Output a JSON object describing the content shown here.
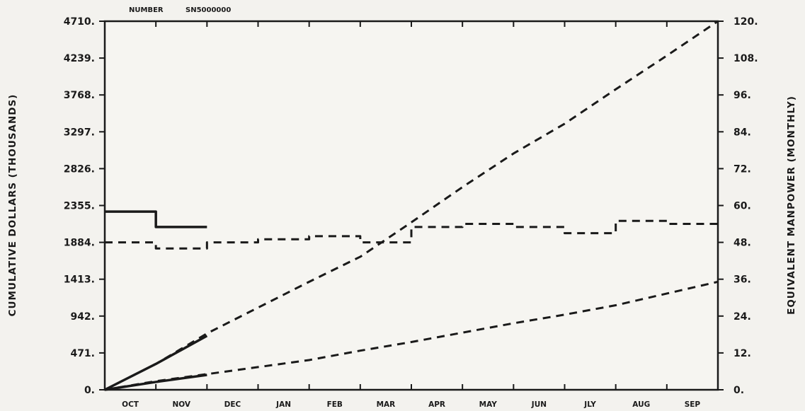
{
  "header": {
    "number_label": "NUMBER",
    "number_value": "SN5000000"
  },
  "chart_data": {
    "type": "line",
    "title": "",
    "xlabel": "",
    "ylabel_left": "CUMULATIVE DOLLARS (THOUSANDS)",
    "ylabel_right": "EQUIVALENT MANPOWER (MONTHLY)",
    "categories": [
      "OCT",
      "NOV",
      "DEC",
      "JAN",
      "FEB",
      "MAR",
      "APR",
      "MAY",
      "JUN",
      "JLY",
      "AUG",
      "SEP"
    ],
    "x_range": [
      0,
      12
    ],
    "left_axis": {
      "range": [
        0,
        4710
      ],
      "ticks": [
        0,
        471,
        942,
        1413,
        1884,
        2355,
        2826,
        3297,
        3768,
        4239,
        4710
      ],
      "tick_labels": [
        "0.",
        "471.",
        "942.",
        "1413.",
        "1884.",
        "2355.",
        "2826.",
        "3297.",
        "3768.",
        "4239.",
        "4710."
      ]
    },
    "right_axis": {
      "range": [
        0,
        120
      ],
      "ticks": [
        0,
        12,
        24,
        36,
        48,
        60,
        72,
        84,
        96,
        108,
        120
      ],
      "tick_labels": [
        "0.",
        "12.",
        "24.",
        "36.",
        "48.",
        "60.",
        "72.",
        "84.",
        "96.",
        "108.",
        "120."
      ]
    },
    "grid": false,
    "series": [
      {
        "axis": "left",
        "style": "dashed",
        "kind": "line",
        "x": [
          0,
          1,
          2,
          3,
          4,
          5,
          6,
          7,
          8,
          9,
          10,
          11,
          12
        ],
        "values": [
          0,
          330,
          720,
          1050,
          1380,
          1700,
          2140,
          2590,
          3020,
          3400,
          3840,
          4270,
          4710
        ]
      },
      {
        "axis": "left",
        "style": "solid",
        "kind": "line",
        "x": [
          0,
          1,
          2
        ],
        "values": [
          0,
          330,
          690
        ]
      },
      {
        "axis": "left",
        "style": "dashed",
        "kind": "line",
        "x": [
          0,
          1,
          2,
          3,
          4,
          5,
          6,
          7,
          8,
          9,
          10,
          11,
          12
        ],
        "values": [
          0,
          110,
          200,
          290,
          380,
          500,
          610,
          730,
          850,
          960,
          1080,
          1230,
          1380
        ]
      },
      {
        "axis": "left",
        "style": "solid",
        "kind": "line",
        "x": [
          0,
          1,
          2
        ],
        "values": [
          0,
          100,
          190
        ]
      },
      {
        "axis": "right",
        "style": "dashed",
        "kind": "step",
        "x": [
          0,
          1,
          2,
          3,
          4,
          5,
          6,
          7,
          8,
          9,
          10,
          11,
          12
        ],
        "values": [
          48,
          46,
          48,
          49,
          50,
          48,
          53,
          54,
          53,
          51,
          55,
          54,
          59
        ]
      },
      {
        "axis": "right",
        "style": "solid",
        "kind": "step",
        "x": [
          0,
          1,
          2
        ],
        "values": [
          58,
          53,
          53
        ]
      }
    ]
  }
}
